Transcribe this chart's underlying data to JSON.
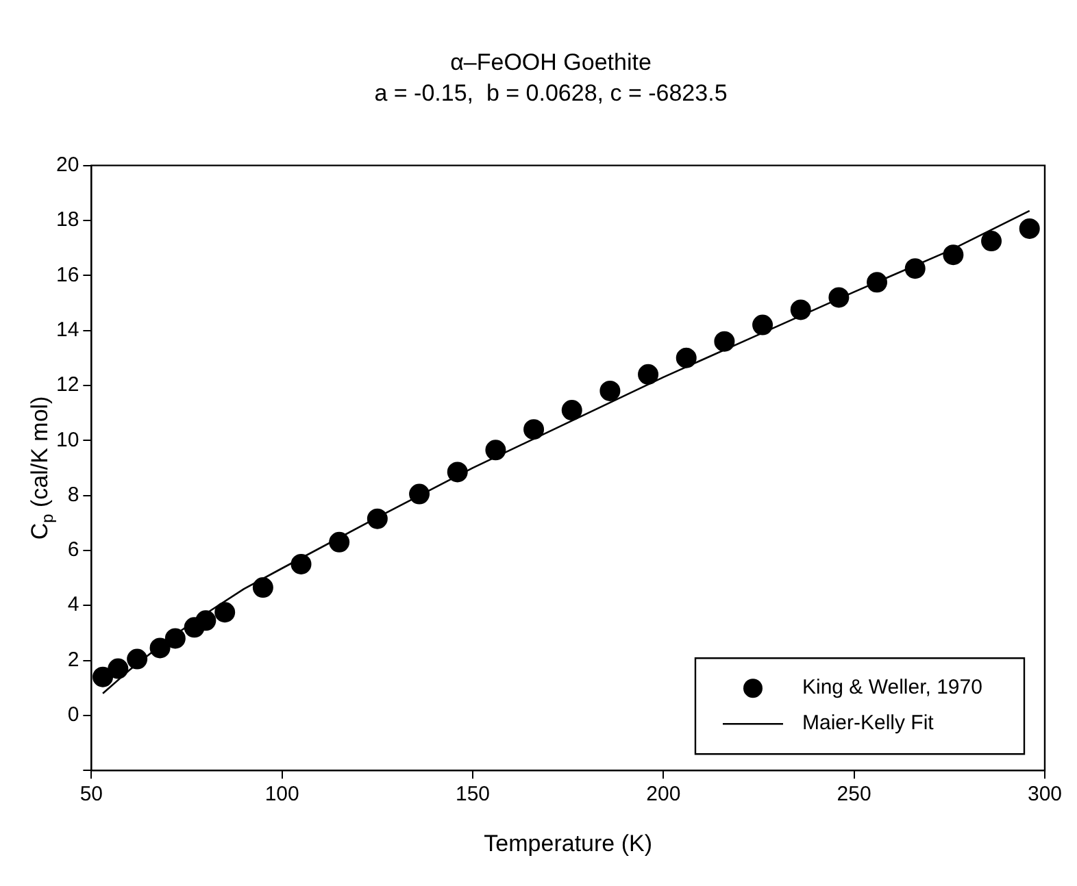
{
  "chart_data": {
    "type": "scatter",
    "title": "α–FeOOH Goethite",
    "subtitle": "a = -0.15,  b = 0.0628, c = -6823.5",
    "xlabel": "Temperature (K)",
    "ylabel": "C$_{p}$ (cal/K mol)",
    "xlim": [
      50,
      300
    ],
    "xticks": [
      50,
      100,
      150,
      200,
      250,
      300
    ],
    "ylim": [
      -2,
      20
    ],
    "yticks": [
      {
        "value": -2,
        "label": null
      },
      0,
      2,
      4,
      6,
      8,
      10,
      12,
      14,
      16,
      18,
      20
    ],
    "grid": false,
    "legend": "bottom right",
    "marker": "circle",
    "series": [
      {
        "name": "King & Weller, 1970",
        "type": "scatter",
        "color": "#000000",
        "x": [
          53,
          57,
          62,
          68,
          72,
          77,
          80,
          85,
          95,
          105,
          115,
          125,
          136,
          146,
          156,
          166,
          176,
          186,
          196,
          206,
          216,
          226,
          236,
          246,
          256,
          266,
          276,
          286,
          296
        ],
        "values": [
          1.4,
          1.7,
          2.05,
          2.45,
          2.8,
          3.2,
          3.45,
          3.75,
          4.65,
          5.5,
          6.3,
          7.15,
          8.05,
          8.85,
          9.65,
          10.4,
          11.1,
          11.8,
          12.4,
          13.0,
          13.6,
          14.2,
          14.75,
          15.2,
          15.75,
          16.25,
          16.75,
          17.25,
          17.7
        ]
      },
      {
        "name": "Maier-Kelly Fit",
        "type": "line",
        "color": "#000000",
        "line_style": "solid",
        "marker": "none",
        "x": [
          53,
          60,
          70,
          80,
          90,
          100,
          125,
          150,
          175,
          200,
          225,
          250,
          275,
          296
        ],
        "values": [
          0.8,
          1.65,
          2.75,
          3.7,
          4.6,
          5.35,
          7.2,
          9.0,
          10.65,
          12.3,
          13.85,
          15.4,
          16.9,
          18.35
        ]
      }
    ]
  }
}
